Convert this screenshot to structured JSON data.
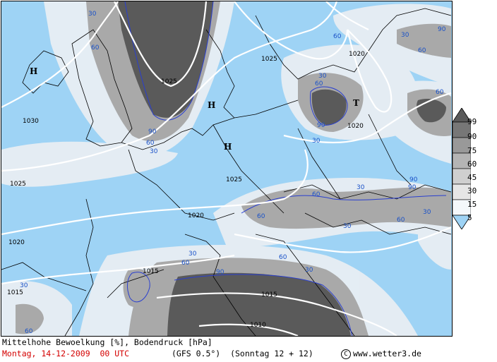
{
  "caption": {
    "title": "Mittelhohe Bewoelkung [%], Bodendruck [hPa]",
    "date": "Montag, 14-12-2009  00 UTC",
    "model": "(GFS 0.5°)  (Sonntag 12 + 12)",
    "credit": "www.wetter3.de"
  },
  "legend": {
    "labels": [
      "99",
      "90",
      "75",
      "60",
      "45",
      "30",
      "15",
      "5"
    ],
    "colors": [
      "#5a5a5a",
      "#777777",
      "#999999",
      "#b4b4b4",
      "#cfcfcf",
      "#e6e6e6",
      "#f4f8fb",
      "#9ed3f5"
    ]
  },
  "map": {
    "pressure_labels": [
      "1025",
      "1025",
      "1030",
      "1025",
      "1020",
      "1020",
      "1020",
      "1020",
      "1015",
      "1015",
      "1015",
      "1010",
      "1020"
    ],
    "pressure_centers": [
      "H",
      "H",
      "H",
      "T"
    ],
    "cloud_labels": [
      "30",
      "60",
      "90",
      "30",
      "60",
      "90",
      "60",
      "30",
      "60",
      "90",
      "30",
      "60",
      "30",
      "60",
      "90",
      "60",
      "30",
      "90",
      "60",
      "30",
      "60",
      "30",
      "90",
      "60",
      "30",
      "60",
      "30",
      "30",
      "60"
    ]
  }
}
